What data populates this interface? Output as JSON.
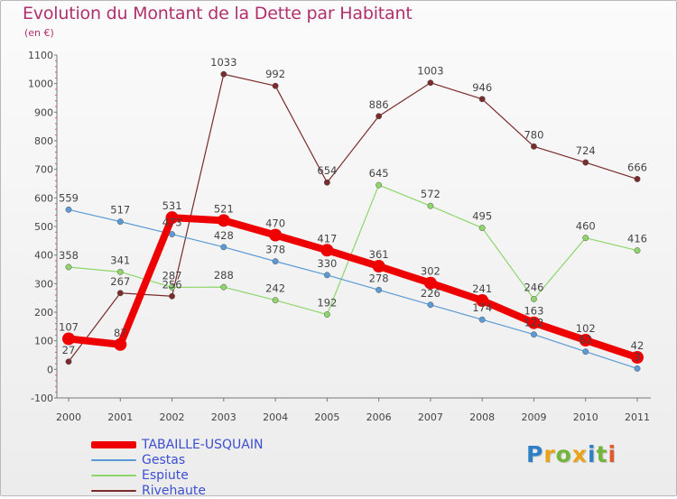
{
  "header": {
    "title": "Evolution du Montant de la Dette par Habitant",
    "subtitle": "(en €)"
  },
  "brand": {
    "letters": [
      {
        "ch": "P",
        "color": "#2f7fc6"
      },
      {
        "ch": "r",
        "color": "#e8a318"
      },
      {
        "ch": "o",
        "color": "#73b43a"
      },
      {
        "ch": "x",
        "color": "#e8a318"
      },
      {
        "ch": "i",
        "color": "#2f7fc6"
      },
      {
        "ch": "t",
        "color": "#73b43a"
      },
      {
        "ch": "i",
        "color": "#e05a2a"
      }
    ]
  },
  "chart_data": {
    "type": "line",
    "title": "Evolution du Montant de la Dette par Habitant",
    "subtitle": "(en €)",
    "x": [
      2000,
      2001,
      2002,
      2003,
      2004,
      2005,
      2006,
      2007,
      2008,
      2009,
      2010,
      2011
    ],
    "ylim": [
      -100,
      1100
    ],
    "yticks": [
      -100,
      0,
      100,
      200,
      300,
      400,
      500,
      600,
      700,
      800,
      900,
      1000,
      1100
    ],
    "grid": false,
    "legend_position": "bottom-left",
    "series": [
      {
        "name": "TABAILLE-USQUAIN",
        "color": "#ee0000",
        "values": [
          107,
          87,
          531,
          521,
          470,
          417,
          361,
          302,
          241,
          163,
          102,
          42
        ],
        "labels": [
          "107",
          "87",
          "531",
          "521",
          "470",
          "417",
          "361",
          "302",
          "241",
          "163",
          "102",
          "42"
        ]
      },
      {
        "name": "Gestas",
        "color": "#5b9bd5",
        "values": [
          559,
          517,
          473,
          428,
          378,
          330,
          278,
          226,
          174,
          122,
          62,
          3
        ],
        "labels": [
          "559",
          "517",
          "473",
          "428",
          "378",
          "330",
          "278",
          "226",
          "174",
          "122",
          "62",
          "3"
        ]
      },
      {
        "name": "Espiute",
        "color": "#8ed66b",
        "values": [
          358,
          341,
          287,
          288,
          242,
          192,
          645,
          572,
          495,
          246,
          460,
          416
        ],
        "labels": [
          "358",
          "341",
          "287",
          "288",
          "242",
          "192",
          "645",
          "572",
          "495",
          "246",
          "460",
          "416"
        ]
      },
      {
        "name": "Rivehaute",
        "color": "#7a2b2b",
        "values": [
          27,
          267,
          256,
          1033,
          992,
          654,
          886,
          1003,
          946,
          780,
          724,
          666
        ],
        "labels": [
          "27",
          "267",
          "256",
          "1033",
          "992",
          "654",
          "886",
          "1003",
          "946",
          "780",
          "724",
          "666"
        ]
      }
    ]
  }
}
